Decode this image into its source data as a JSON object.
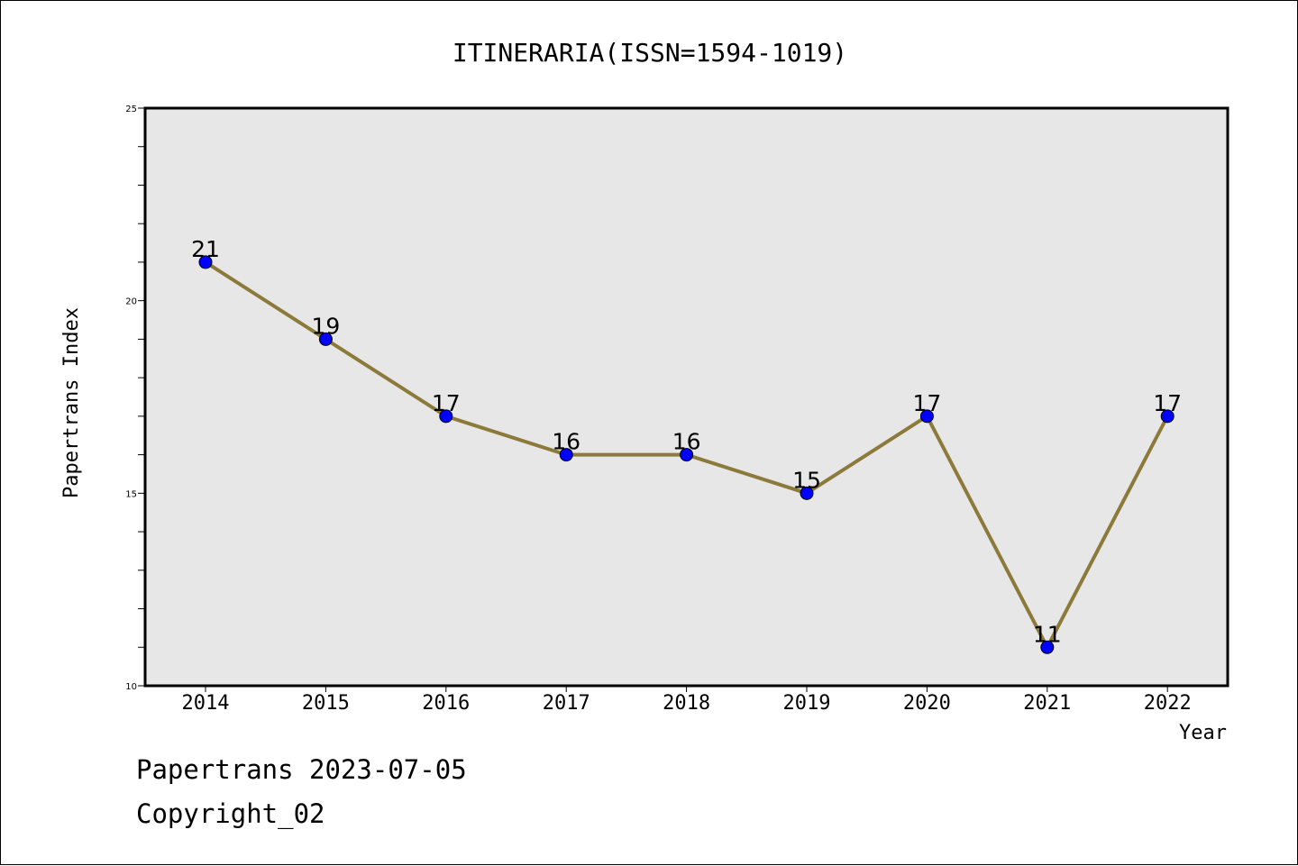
{
  "colors": {
    "background": "#ffffff",
    "plot_background": "#e7e7e7",
    "line": "#8c7a3b",
    "marker": "#0000ff",
    "text": "#000000"
  },
  "footer": {
    "date_text": "Papertrans 2023-07-05",
    "copyright_text": "Copyright_02"
  },
  "chart_data": {
    "type": "line",
    "title": "ITINERARIA(ISSN=1594-1019)",
    "xlabel": "Year",
    "ylabel": "Papertrans Index",
    "categories": [
      "2014",
      "2015",
      "2016",
      "2017",
      "2018",
      "2019",
      "2020",
      "2021",
      "2022"
    ],
    "series": [
      {
        "values": [
          21,
          19,
          17,
          16,
          16,
          15,
          17,
          11,
          17
        ],
        "data_labels": [
          "21",
          "19",
          "17",
          "16",
          "16",
          "15",
          "17",
          "11",
          "17"
        ]
      }
    ],
    "ylim": [
      10,
      25
    ],
    "yticks": [
      "10",
      "15",
      "20",
      "25"
    ],
    "y_minor_step": 1,
    "grid": false,
    "legend": "none",
    "marker": "circle"
  }
}
